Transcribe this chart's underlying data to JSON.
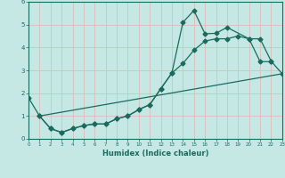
{
  "xlabel": "Humidex (Indice chaleur)",
  "bg_color": "#c5e8e5",
  "grid_color": "#dbbcbc",
  "line_color": "#1a6b5e",
  "xlim": [
    0,
    23
  ],
  "ylim": [
    0,
    6
  ],
  "xticks": [
    0,
    1,
    2,
    3,
    4,
    5,
    6,
    7,
    8,
    9,
    10,
    11,
    12,
    13,
    14,
    15,
    16,
    17,
    18,
    19,
    20,
    21,
    22,
    23
  ],
  "yticks": [
    0,
    1,
    2,
    3,
    4,
    5,
    6
  ],
  "curve1_x": [
    0,
    1,
    2,
    3,
    4,
    5,
    6,
    7,
    8,
    9,
    10,
    11,
    12,
    13,
    14,
    15,
    16,
    17,
    18,
    20,
    21,
    22
  ],
  "curve1_y": [
    1.8,
    1.0,
    0.45,
    0.28,
    0.45,
    0.58,
    0.65,
    0.65,
    0.88,
    1.0,
    1.28,
    1.5,
    2.2,
    2.88,
    5.1,
    5.62,
    4.6,
    4.62,
    4.88,
    4.38,
    3.38,
    3.38
  ],
  "curve2_x": [
    1,
    2,
    3,
    4,
    5,
    6,
    7,
    8,
    9,
    10,
    11,
    12,
    13,
    14,
    15,
    16,
    17,
    18,
    19,
    20,
    21,
    22,
    23
  ],
  "curve2_y": [
    1.0,
    0.45,
    0.28,
    0.45,
    0.58,
    0.65,
    0.65,
    0.88,
    1.0,
    1.28,
    1.5,
    2.2,
    2.88,
    3.3,
    3.88,
    4.28,
    4.38,
    4.38,
    4.5,
    4.38,
    4.38,
    3.4,
    2.85
  ],
  "line3_x": [
    1,
    23
  ],
  "line3_y": [
    1.0,
    2.85
  ]
}
